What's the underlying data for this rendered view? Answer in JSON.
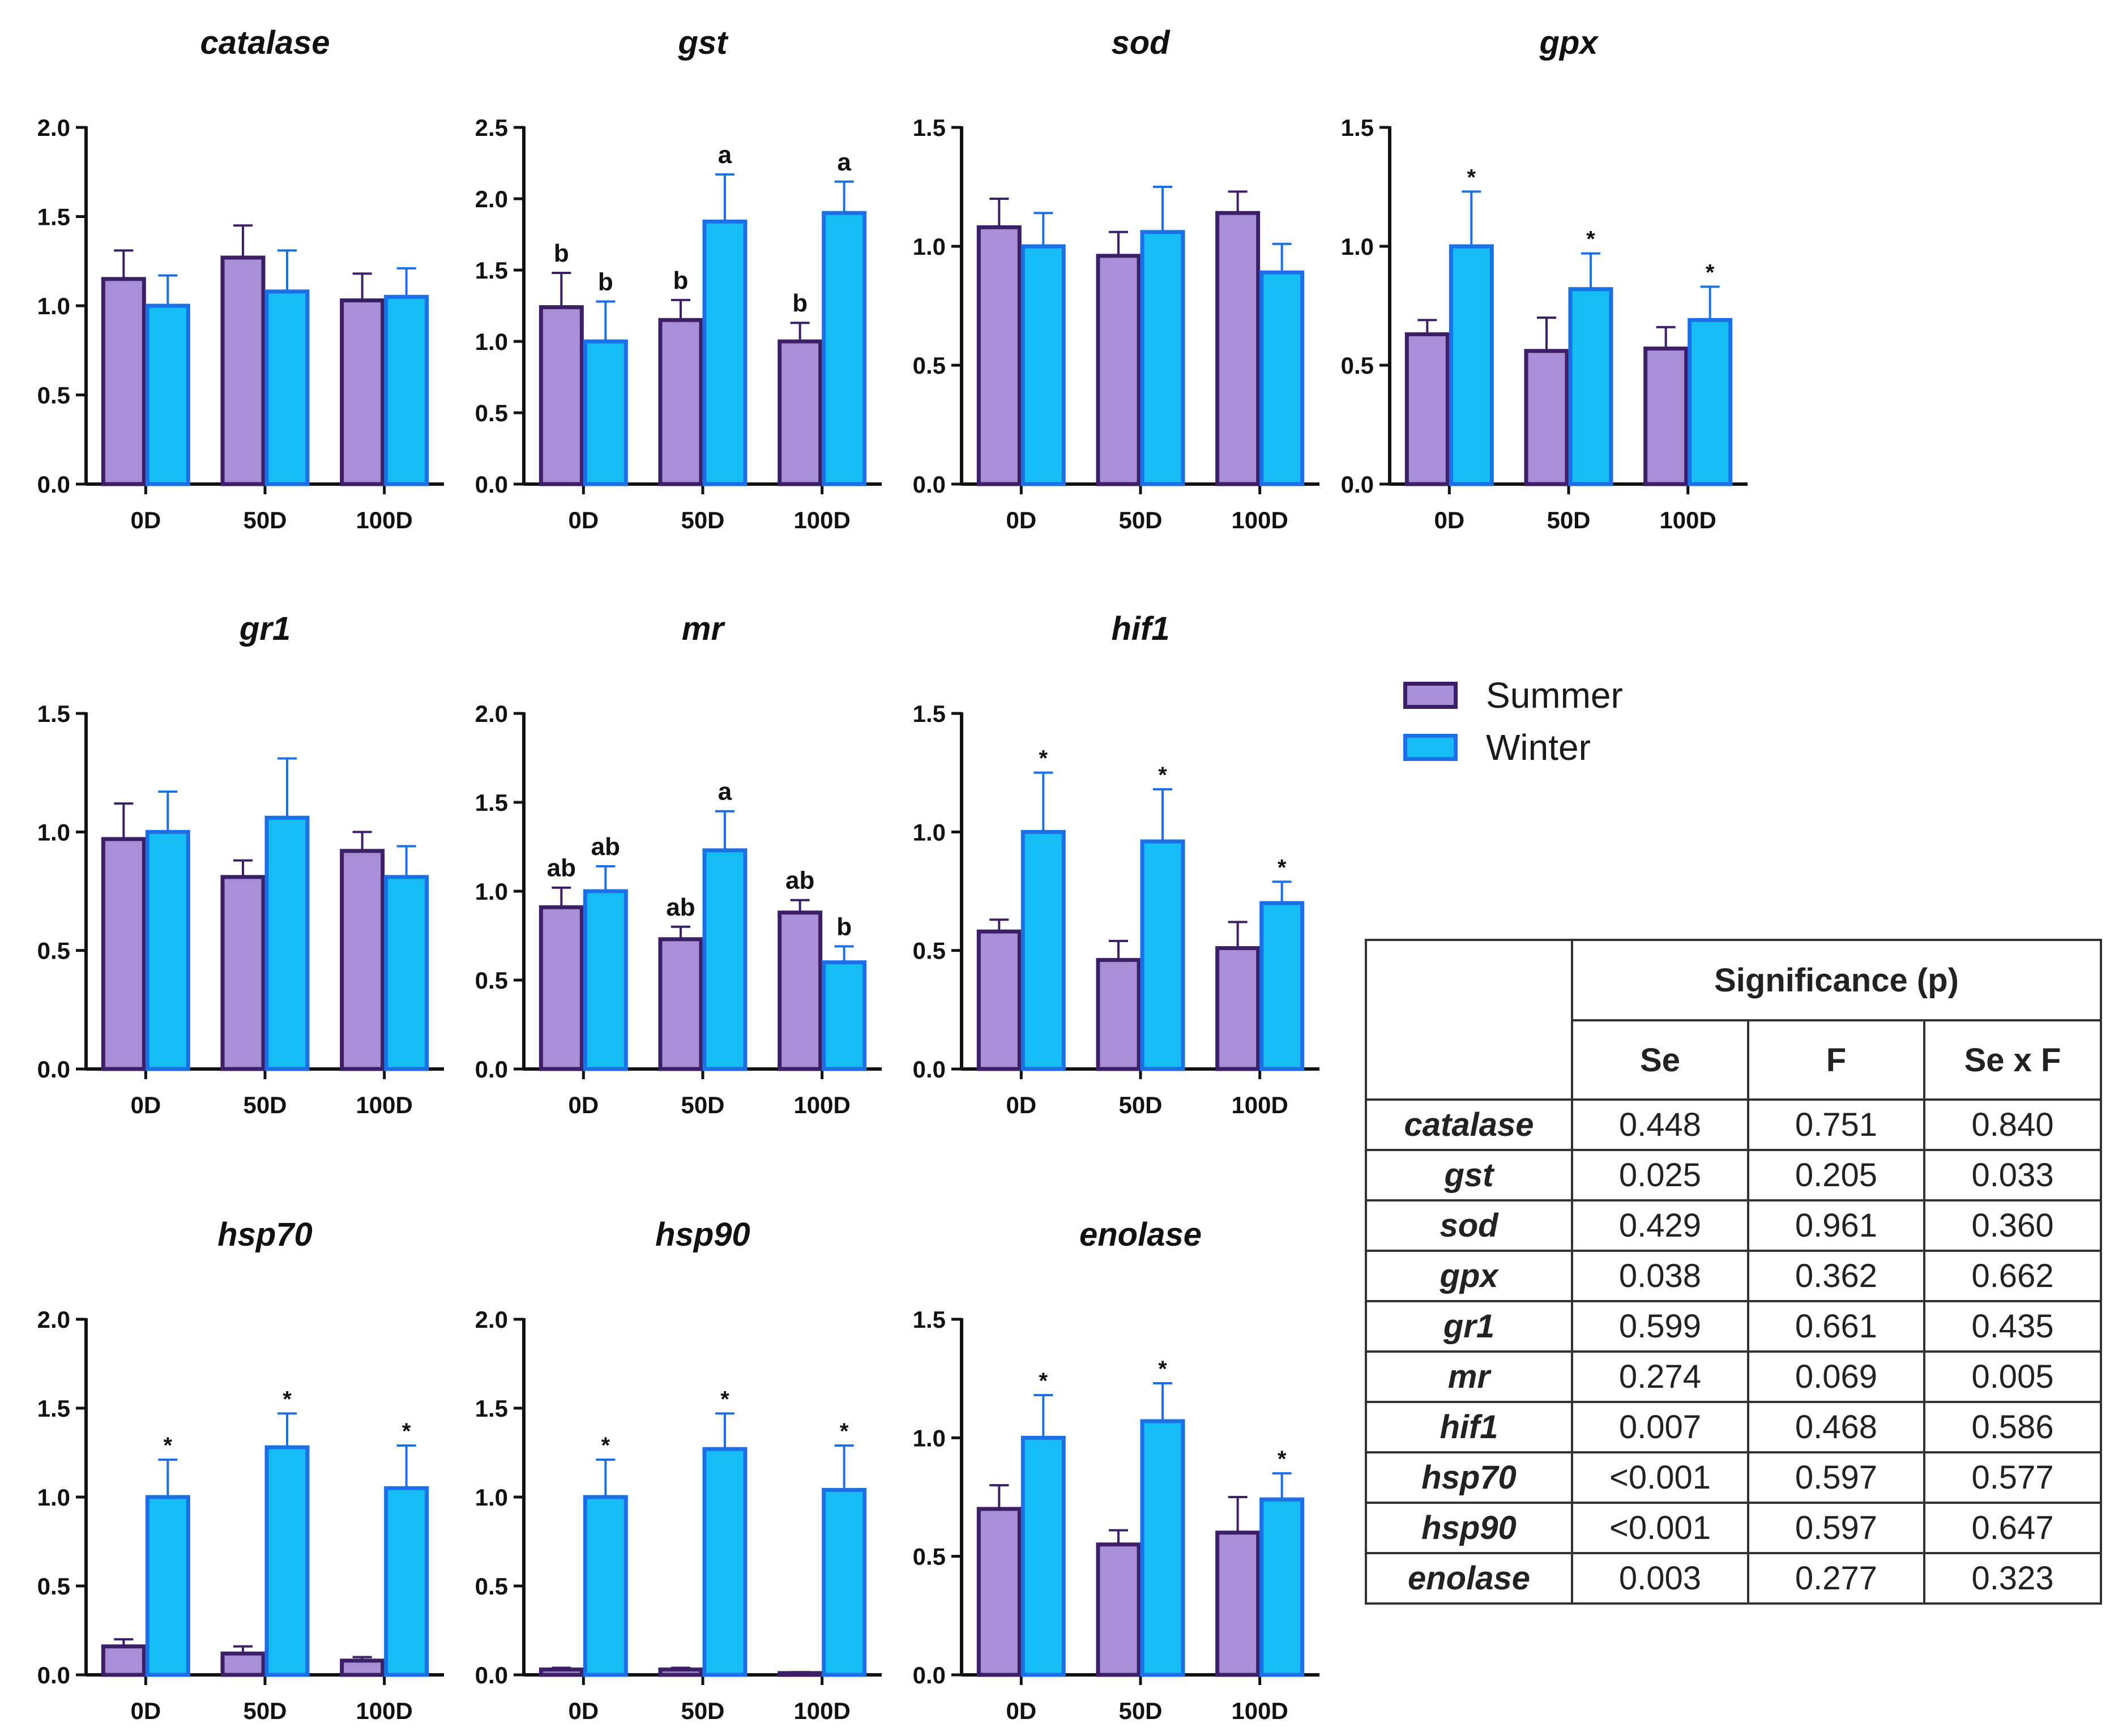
{
  "colors": {
    "summer_fill": "#a98fd8",
    "summer_edge": "#3d1f66",
    "winter_fill": "#16bdf5",
    "winter_edge": "#1d6fe6",
    "axis": "#111111"
  },
  "legend": [
    {
      "name": "Summer",
      "key": "summer"
    },
    {
      "name": "Winter",
      "key": "winter"
    }
  ],
  "chart_data": [
    {
      "type": "bar",
      "title": "catalase",
      "categories": [
        "0D",
        "50D",
        "100D"
      ],
      "ylim": [
        0,
        2.0
      ],
      "yticks": [
        "0.0",
        "0.5",
        "1.0",
        "1.5",
        "2.0"
      ],
      "series": [
        {
          "name": "Summer",
          "values": [
            1.15,
            1.27,
            1.03
          ],
          "errors": [
            0.16,
            0.18,
            0.15
          ],
          "labels": [
            "",
            "",
            ""
          ]
        },
        {
          "name": "Winter",
          "values": [
            1.0,
            1.08,
            1.05
          ],
          "errors": [
            0.17,
            0.23,
            0.16
          ],
          "labels": [
            "",
            "",
            ""
          ]
        }
      ]
    },
    {
      "type": "bar",
      "title": "gst",
      "categories": [
        "0D",
        "50D",
        "100D"
      ],
      "ylim": [
        0,
        2.5
      ],
      "yticks": [
        "0.0",
        "0.5",
        "1.0",
        "1.5",
        "2.0",
        "2.5"
      ],
      "series": [
        {
          "name": "Summer",
          "values": [
            1.24,
            1.15,
            1.0
          ],
          "errors": [
            0.24,
            0.14,
            0.13
          ],
          "labels": [
            "b",
            "b",
            "b"
          ]
        },
        {
          "name": "Winter",
          "values": [
            1.0,
            1.84,
            1.9
          ],
          "errors": [
            0.28,
            0.33,
            0.22
          ],
          "labels": [
            "b",
            "a",
            "a"
          ]
        }
      ]
    },
    {
      "type": "bar",
      "title": "sod",
      "categories": [
        "0D",
        "50D",
        "100D"
      ],
      "ylim": [
        0,
        1.5
      ],
      "yticks": [
        "0.0",
        "0.5",
        "1.0",
        "1.5"
      ],
      "series": [
        {
          "name": "Summer",
          "values": [
            1.08,
            0.96,
            1.14
          ],
          "errors": [
            0.12,
            0.1,
            0.09
          ],
          "labels": [
            "",
            "",
            ""
          ]
        },
        {
          "name": "Winter",
          "values": [
            1.0,
            1.06,
            0.89
          ],
          "errors": [
            0.14,
            0.19,
            0.12
          ],
          "labels": [
            "",
            "",
            ""
          ]
        }
      ]
    },
    {
      "type": "bar",
      "title": "gpx",
      "categories": [
        "0D",
        "50D",
        "100D"
      ],
      "ylim": [
        0,
        1.5
      ],
      "yticks": [
        "0.0",
        "0.5",
        "1.0",
        "1.5"
      ],
      "series": [
        {
          "name": "Summer",
          "values": [
            0.63,
            0.56,
            0.57
          ],
          "errors": [
            0.06,
            0.14,
            0.09
          ],
          "labels": [
            "",
            "",
            ""
          ]
        },
        {
          "name": "Winter",
          "values": [
            1.0,
            0.82,
            0.69
          ],
          "errors": [
            0.23,
            0.15,
            0.14
          ],
          "labels": [
            "*",
            "*",
            "*"
          ]
        }
      ]
    },
    {
      "type": "bar",
      "title": "gr1",
      "categories": [
        "0D",
        "50D",
        "100D"
      ],
      "ylim": [
        0,
        1.5
      ],
      "yticks": [
        "0.0",
        "0.5",
        "1.0",
        "1.5"
      ],
      "series": [
        {
          "name": "Summer",
          "values": [
            0.97,
            0.81,
            0.92
          ],
          "errors": [
            0.15,
            0.07,
            0.08
          ],
          "labels": [
            "",
            "",
            ""
          ]
        },
        {
          "name": "Winter",
          "values": [
            1.0,
            1.06,
            0.81
          ],
          "errors": [
            0.17,
            0.25,
            0.13
          ],
          "labels": [
            "",
            "",
            ""
          ]
        }
      ]
    },
    {
      "type": "bar",
      "title": "mr",
      "categories": [
        "0D",
        "50D",
        "100D"
      ],
      "ylim": [
        0,
        2.0
      ],
      "yticks": [
        "0.0",
        "0.5",
        "1.0",
        "1.5",
        "2.0"
      ],
      "series": [
        {
          "name": "Summer",
          "values": [
            0.91,
            0.73,
            0.88
          ],
          "errors": [
            0.11,
            0.07,
            0.07
          ],
          "labels": [
            "ab",
            "ab",
            "ab"
          ]
        },
        {
          "name": "Winter",
          "values": [
            1.0,
            1.23,
            0.6
          ],
          "errors": [
            0.14,
            0.22,
            0.09
          ],
          "labels": [
            "ab",
            "a",
            "b"
          ]
        }
      ]
    },
    {
      "type": "bar",
      "title": "hif1",
      "categories": [
        "0D",
        "50D",
        "100D"
      ],
      "ylim": [
        0,
        1.5
      ],
      "yticks": [
        "0.0",
        "0.5",
        "1.0",
        "1.5"
      ],
      "series": [
        {
          "name": "Summer",
          "values": [
            0.58,
            0.46,
            0.51
          ],
          "errors": [
            0.05,
            0.08,
            0.11
          ],
          "labels": [
            "",
            "",
            ""
          ]
        },
        {
          "name": "Winter",
          "values": [
            1.0,
            0.96,
            0.7
          ],
          "errors": [
            0.25,
            0.22,
            0.09
          ],
          "labels": [
            "*",
            "*",
            "*"
          ]
        }
      ]
    },
    {
      "type": "bar",
      "title": "hsp70",
      "categories": [
        "0D",
        "50D",
        "100D"
      ],
      "ylim": [
        0,
        2.0
      ],
      "yticks": [
        "0.0",
        "0.5",
        "1.0",
        "1.5",
        "2.0"
      ],
      "series": [
        {
          "name": "Summer",
          "values": [
            0.16,
            0.12,
            0.08
          ],
          "errors": [
            0.04,
            0.04,
            0.02
          ],
          "labels": [
            "",
            "",
            ""
          ]
        },
        {
          "name": "Winter",
          "values": [
            1.0,
            1.28,
            1.05
          ],
          "errors": [
            0.21,
            0.19,
            0.24
          ],
          "labels": [
            "*",
            "*",
            "*"
          ]
        }
      ]
    },
    {
      "type": "bar",
      "title": "hsp90",
      "categories": [
        "0D",
        "50D",
        "100D"
      ],
      "ylim": [
        0,
        2.0
      ],
      "yticks": [
        "0.0",
        "0.5",
        "1.0",
        "1.5",
        "2.0"
      ],
      "series": [
        {
          "name": "Summer",
          "values": [
            0.03,
            0.03,
            0.01
          ],
          "errors": [
            0.01,
            0.01,
            0.005
          ],
          "labels": [
            "",
            "",
            ""
          ]
        },
        {
          "name": "Winter",
          "values": [
            1.0,
            1.27,
            1.04
          ],
          "errors": [
            0.21,
            0.2,
            0.25
          ],
          "labels": [
            "*",
            "*",
            "*"
          ]
        }
      ]
    },
    {
      "type": "bar",
      "title": "enolase",
      "categories": [
        "0D",
        "50D",
        "100D"
      ],
      "ylim": [
        0,
        1.5
      ],
      "yticks": [
        "0.0",
        "0.5",
        "1.0",
        "1.5"
      ],
      "series": [
        {
          "name": "Summer",
          "values": [
            0.7,
            0.55,
            0.6
          ],
          "errors": [
            0.1,
            0.06,
            0.15
          ],
          "labels": [
            "",
            "",
            ""
          ]
        },
        {
          "name": "Winter",
          "values": [
            1.0,
            1.07,
            0.74
          ],
          "errors": [
            0.18,
            0.16,
            0.11
          ],
          "labels": [
            "*",
            "*",
            "*"
          ]
        }
      ]
    }
  ],
  "table": {
    "title": "Significance (p)",
    "columns": [
      "Se",
      "F",
      "Se x F"
    ],
    "rows": [
      {
        "gene": "catalase",
        "values": [
          "0.448",
          "0.751",
          "0.840"
        ]
      },
      {
        "gene": "gst",
        "values": [
          "0.025",
          "0.205",
          "0.033"
        ]
      },
      {
        "gene": "sod",
        "values": [
          "0.429",
          "0.961",
          "0.360"
        ]
      },
      {
        "gene": "gpx",
        "values": [
          "0.038",
          "0.362",
          "0.662"
        ]
      },
      {
        "gene": "gr1",
        "values": [
          "0.599",
          "0.661",
          "0.435"
        ]
      },
      {
        "gene": "mr",
        "values": [
          "0.274",
          "0.069",
          "0.005"
        ]
      },
      {
        "gene": "hif1",
        "values": [
          "0.007",
          "0.468",
          "0.586"
        ]
      },
      {
        "gene": "hsp70",
        "values": [
          "<0.001",
          "0.597",
          "0.577"
        ]
      },
      {
        "gene": "hsp90",
        "values": [
          "<0.001",
          "0.597",
          "0.647"
        ]
      },
      {
        "gene": "enolase",
        "values": [
          "0.003",
          "0.277",
          "0.323"
        ]
      }
    ]
  }
}
